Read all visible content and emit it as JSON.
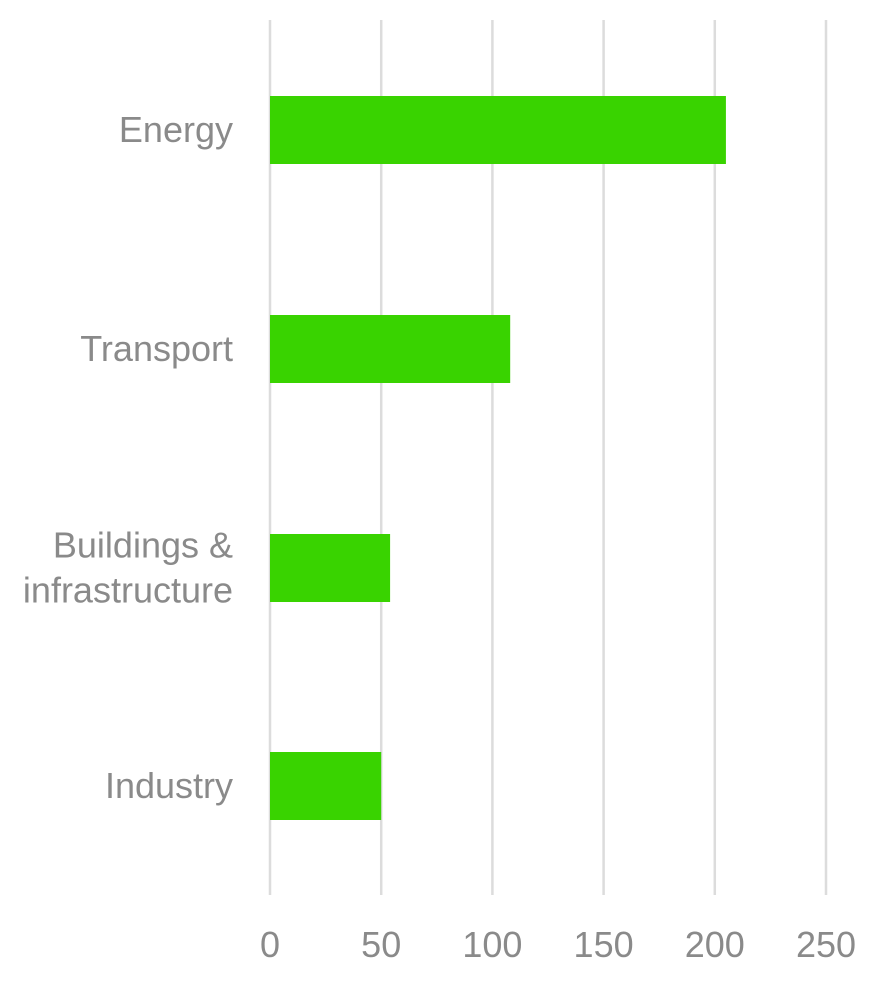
{
  "chart_data": {
    "type": "bar",
    "orientation": "horizontal",
    "categories": [
      [
        "Energy"
      ],
      [
        "Transport"
      ],
      [
        "Buildings &",
        "infrastructure"
      ],
      [
        "Industry"
      ]
    ],
    "values": [
      205,
      108,
      54,
      50
    ],
    "xlim": [
      0,
      250
    ],
    "xticks": [
      0,
      50,
      100,
      150,
      200,
      250
    ],
    "grid": "vertical",
    "bar_color": "#39d300",
    "title": "",
    "xlabel": "",
    "ylabel": ""
  }
}
